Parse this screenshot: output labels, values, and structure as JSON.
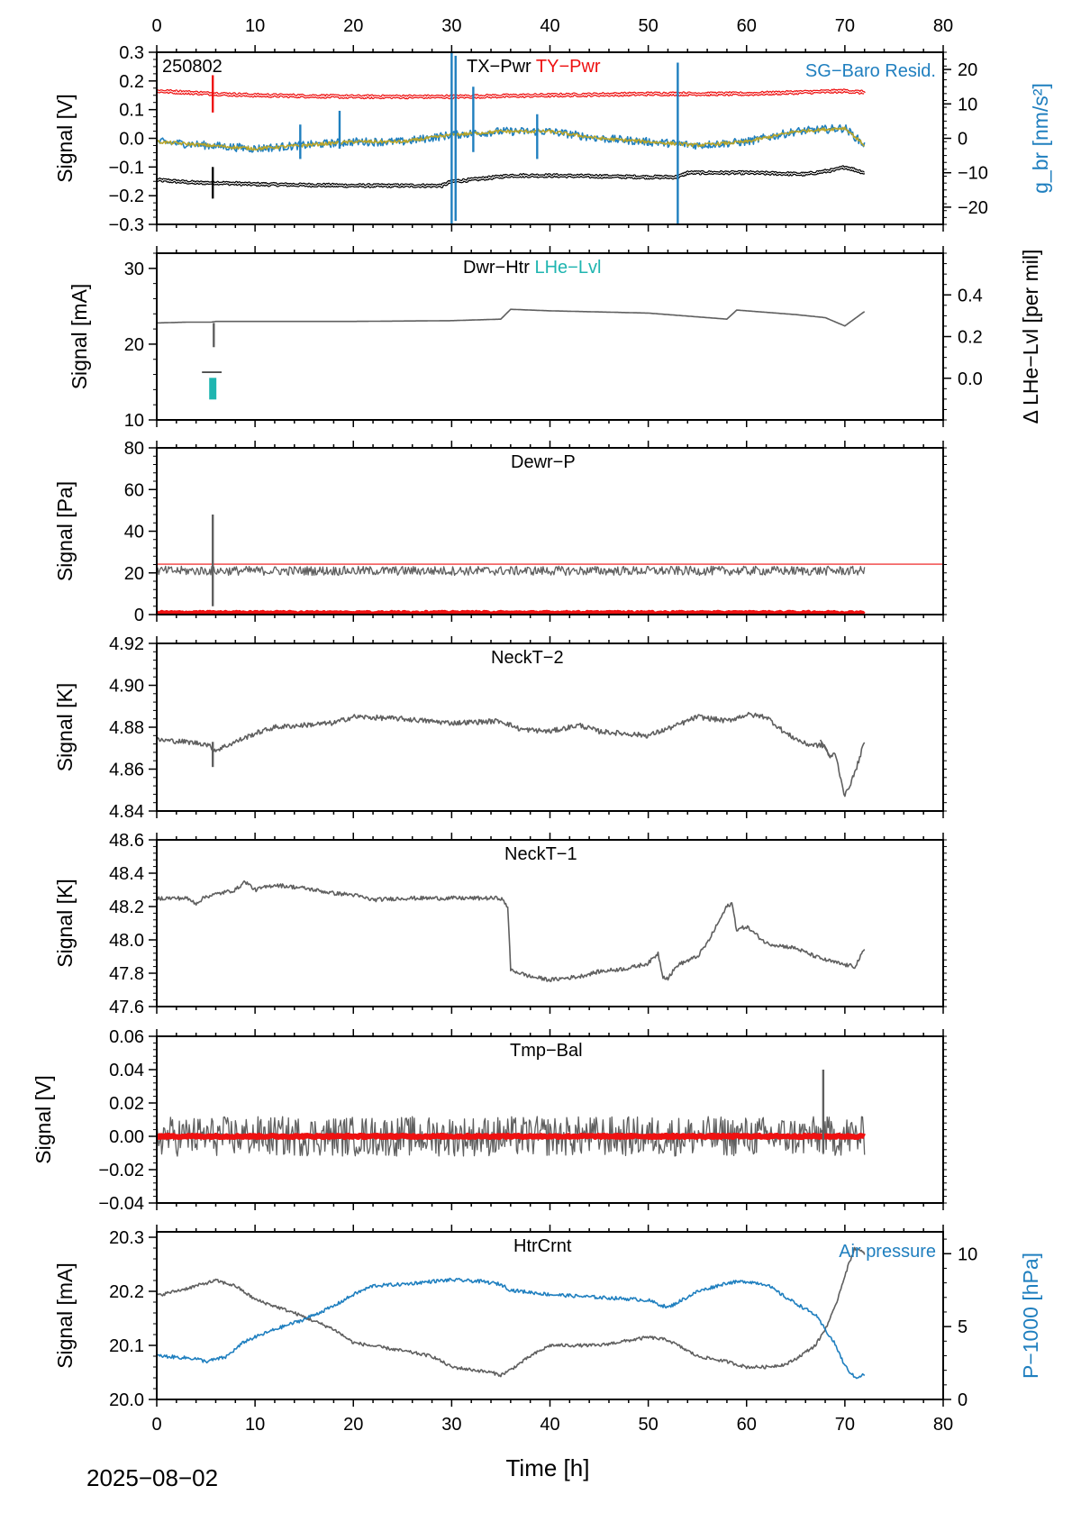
{
  "figure": {
    "date_label": "2025−08−02",
    "x_axis_title": "Time [h]",
    "x_ticks": [
      "0",
      "10",
      "20",
      "30",
      "40",
      "50",
      "60",
      "70",
      "80"
    ]
  },
  "colors": {
    "gray": "#5f5f5f",
    "red": "#ee1111",
    "blue": "#1f7fbf",
    "olive": "#b7a52a",
    "black": "#000000",
    "teal": "#1fb5b0"
  },
  "chart_data": [
    {
      "id": "tilt",
      "type": "line",
      "title": "",
      "corner_label": "250802",
      "labels": [
        {
          "text": "TX−Pwr",
          "color": "black"
        },
        {
          "text": "TY−Pwr",
          "color": "red"
        },
        {
          "text": "SG−Baro Resid.",
          "color": "blue"
        }
      ],
      "ylabel": "Signal [V]",
      "ylim": [
        -0.3,
        0.3
      ],
      "yticks": [
        "0.3",
        "0.2",
        "0.1",
        "0.0",
        "−0.1",
        "−0.2",
        "−0.3"
      ],
      "y2label": "g_br [nm/s²]",
      "y2lim": [
        -25,
        25
      ],
      "y2ticks": [
        "20",
        "10",
        "0",
        "−10",
        "−20"
      ],
      "series": [
        {
          "name": "TX−Pwr",
          "axis": "left",
          "color": "black",
          "x": [
            0,
            4,
            6,
            10,
            20,
            29,
            30,
            31,
            36,
            40,
            50,
            53,
            54,
            60,
            66,
            69,
            70,
            72
          ],
          "y": [
            -0.145,
            -0.155,
            -0.155,
            -0.16,
            -0.165,
            -0.165,
            -0.15,
            -0.148,
            -0.13,
            -0.13,
            -0.135,
            -0.135,
            -0.12,
            -0.12,
            -0.125,
            -0.11,
            -0.1,
            -0.12
          ]
        },
        {
          "name": "TY−Pwr",
          "axis": "left",
          "color": "red",
          "x": [
            0,
            6,
            10,
            20,
            30,
            40,
            50,
            60,
            70,
            72
          ],
          "y": [
            0.165,
            0.155,
            0.15,
            0.145,
            0.145,
            0.15,
            0.155,
            0.155,
            0.165,
            0.16
          ]
        },
        {
          "name": "SG−Baro Resid.",
          "axis": "right",
          "color": "blue",
          "x": [
            0,
            5,
            10,
            15,
            20,
            25,
            30,
            35,
            40,
            45,
            50,
            55,
            60,
            65,
            70,
            72
          ],
          "y": [
            -1,
            -2,
            -3,
            -2,
            -1,
            -1,
            1,
            2,
            2,
            0,
            -1,
            -2,
            -1,
            2,
            3,
            -2
          ]
        },
        {
          "name": "",
          "axis": "right",
          "color": "olive",
          "x": [
            0,
            5,
            10,
            15,
            20,
            25,
            30,
            35,
            40,
            45,
            50,
            55,
            60,
            65,
            70,
            72
          ],
          "y": [
            -1,
            -2,
            -3,
            -2,
            -1,
            -1,
            1,
            2,
            2,
            0,
            -1,
            -2,
            -1,
            2,
            3,
            -2
          ]
        }
      ],
      "spikes": [
        {
          "series": "blue",
          "x": 30.0,
          "y": [
            -25,
            25
          ]
        },
        {
          "series": "blue",
          "x": 30.4,
          "y": [
            -24,
            24
          ]
        },
        {
          "series": "blue",
          "x": 53.0,
          "y": [
            -25,
            22
          ]
        },
        {
          "series": "blue",
          "x": 14.6,
          "y": [
            -6,
            4
          ]
        },
        {
          "series": "blue",
          "x": 18.6,
          "y": [
            -3,
            8
          ]
        },
        {
          "series": "blue",
          "x": 32.2,
          "y": [
            -4,
            15
          ]
        },
        {
          "series": "blue",
          "x": 38.7,
          "y": [
            -6,
            7
          ]
        },
        {
          "series": "black",
          "x": 5.7,
          "y": [
            -0.21,
            -0.1
          ]
        },
        {
          "series": "red",
          "x": 5.7,
          "y": [
            0.09,
            0.22
          ]
        }
      ]
    },
    {
      "id": "dwr",
      "type": "line",
      "title": "",
      "labels": [
        {
          "text": "Dwr−Htr",
          "color": "black"
        },
        {
          "text": "LHe−Lvl",
          "color": "teal"
        }
      ],
      "ylabel": "Signal [mA]",
      "ylim": [
        10,
        32
      ],
      "yticks": [
        "30",
        "20",
        "10"
      ],
      "y2label": "Δ LHe−Lvl [per mil]",
      "y2lim": [
        -0.2,
        0.6
      ],
      "y2ticks": [
        "0.4",
        "0.2",
        "0.0"
      ],
      "series": [
        {
          "name": "Dwr−Htr",
          "axis": "left",
          "color": "gray",
          "x": [
            0,
            3,
            5.5,
            6,
            10,
            20,
            30,
            35,
            36,
            40,
            50,
            58,
            59,
            65,
            68,
            70,
            72
          ],
          "y": [
            22.8,
            22.9,
            22.9,
            23.0,
            23.0,
            23.0,
            23.1,
            23.3,
            24.6,
            24.4,
            24.1,
            23.3,
            24.5,
            23.9,
            23.5,
            22.4,
            24.3
          ]
        },
        {
          "name": "LHe−Lvl",
          "axis": "right",
          "color": "teal",
          "x": [
            5.7
          ],
          "y": [
            -0.05
          ]
        }
      ],
      "spikes": [
        {
          "series": "gray",
          "x": 5.8,
          "y": [
            19.6,
            22.8
          ]
        }
      ],
      "marker": {
        "x1": 4.6,
        "x2": 6.6,
        "y": 16.3
      }
    },
    {
      "id": "dewr",
      "type": "line",
      "title": "",
      "labels": [
        {
          "text": "Dewr−P",
          "color": "black"
        }
      ],
      "ylabel": "Signal [Pa]",
      "ylim": [
        0,
        80
      ],
      "yticks": [
        "80",
        "60",
        "40",
        "20",
        "0"
      ],
      "series": [
        {
          "name": "Dewr−P",
          "axis": "left",
          "color": "gray",
          "x": [
            0,
            10,
            20,
            30,
            40,
            50,
            60,
            70,
            72
          ],
          "y": [
            21,
            21,
            21,
            21,
            21,
            21,
            21,
            21,
            21
          ],
          "noise": 2.2
        },
        {
          "name": "",
          "axis": "left",
          "color": "red",
          "x": [
            0,
            72
          ],
          "y": [
            0.5,
            0.5
          ]
        }
      ],
      "hline": {
        "color": "red",
        "y": 24.2,
        "x": [
          0,
          80
        ]
      },
      "spikes": [
        {
          "series": "gray",
          "x": 5.7,
          "y": [
            4,
            48
          ]
        }
      ]
    },
    {
      "id": "neck2",
      "type": "line",
      "title": "",
      "labels": [
        {
          "text": "NeckT−2",
          "color": "black"
        }
      ],
      "ylabel": "Signal [K]",
      "ylim": [
        4.84,
        4.92
      ],
      "yticks": [
        "4.92",
        "4.90",
        "4.88",
        "4.86",
        "4.84"
      ],
      "series": [
        {
          "name": "NeckT−2",
          "axis": "left",
          "color": "gray",
          "x": [
            0,
            3,
            5,
            6,
            8,
            10,
            12,
            15,
            18,
            20,
            25,
            30,
            35,
            37,
            40,
            43,
            45,
            50,
            53,
            55,
            58,
            60,
            62,
            64,
            66,
            68,
            68.5,
            69,
            70,
            71,
            72
          ],
          "y": [
            4.874,
            4.873,
            4.872,
            4.869,
            4.873,
            4.877,
            4.88,
            4.881,
            4.882,
            4.885,
            4.884,
            4.882,
            4.883,
            4.879,
            4.878,
            4.881,
            4.878,
            4.876,
            4.881,
            4.885,
            4.883,
            4.886,
            4.885,
            4.877,
            4.872,
            4.871,
            4.865,
            4.868,
            4.847,
            4.858,
            4.873
          ],
          "noise": 0.0012
        },
        {
          "name": "",
          "axis": "left",
          "color": "gray",
          "x": [
            67.5,
            68.5
          ],
          "y": [
            4.874,
            4.866
          ]
        }
      ],
      "spikes": [
        {
          "series": "gray",
          "x": 5.7,
          "y": [
            4.861,
            4.873
          ]
        }
      ]
    },
    {
      "id": "neck1",
      "type": "line",
      "title": "",
      "labels": [
        {
          "text": "NeckT−1",
          "color": "black"
        }
      ],
      "ylabel": "Signal [K]",
      "ylim": [
        47.6,
        48.6
      ],
      "yticks": [
        "48.6",
        "48.4",
        "48.2",
        "48.0",
        "47.8",
        "47.6"
      ],
      "series": [
        {
          "name": "NeckT−1",
          "axis": "left",
          "color": "gray",
          "x": [
            0,
            3,
            4,
            5,
            8,
            9,
            10,
            12,
            15,
            18,
            20,
            22,
            25,
            30,
            35,
            35.7,
            36,
            38,
            40,
            43,
            45,
            48,
            50,
            51,
            51.5,
            52,
            53,
            55,
            56,
            58,
            58.5,
            59,
            60,
            62,
            65,
            67,
            68,
            70,
            71,
            72
          ],
          "y": [
            48.25,
            48.25,
            48.22,
            48.26,
            48.3,
            48.35,
            48.3,
            48.33,
            48.31,
            48.28,
            48.27,
            48.24,
            48.25,
            48.25,
            48.25,
            48.2,
            47.82,
            47.78,
            47.76,
            47.78,
            47.81,
            47.83,
            47.86,
            47.92,
            47.78,
            47.77,
            47.85,
            47.9,
            47.98,
            48.2,
            48.22,
            48.06,
            48.08,
            47.98,
            47.95,
            47.9,
            47.88,
            47.85,
            47.84,
            47.94
          ],
          "noise": 0.012
        }
      ]
    },
    {
      "id": "tmpbal",
      "type": "line",
      "title": "",
      "labels": [
        {
          "text": "Tmp−Bal",
          "color": "black"
        }
      ],
      "ylabel": "Signal [V]",
      "ylim": [
        -0.04,
        0.06
      ],
      "yticks": [
        "0.06",
        "0.04",
        "0.02",
        "0.00",
        "−0.02",
        "−0.04"
      ],
      "series": [
        {
          "name": "Tmp−Bal",
          "axis": "left",
          "color": "gray",
          "x": [
            0,
            72
          ],
          "y": [
            0.0,
            0.0
          ],
          "noise": 0.012
        },
        {
          "name": "",
          "axis": "left",
          "color": "red",
          "x": [
            0,
            72
          ],
          "y": [
            0.0,
            0.0
          ]
        }
      ],
      "spikes": [
        {
          "series": "gray",
          "x": 67.8,
          "y": [
            -0.01,
            0.04
          ]
        }
      ]
    },
    {
      "id": "htr",
      "type": "line",
      "title": "",
      "labels": [
        {
          "text": "HtrCrnt",
          "color": "black"
        },
        {
          "text": "Air pressure",
          "color": "blue"
        }
      ],
      "ylabel": "Signal [mA]",
      "ylim": [
        20.0,
        20.31
      ],
      "yticks": [
        "20.3",
        "20.2",
        "20.1",
        "20.0"
      ],
      "y2label": "P−1000 [hPa]",
      "y2lim": [
        0,
        11.5
      ],
      "y2ticks": [
        "10",
        "5",
        "0"
      ],
      "series": [
        {
          "name": "HtrCrnt",
          "axis": "left",
          "color": "gray",
          "x": [
            0,
            3,
            6,
            8,
            10,
            14,
            18,
            20,
            25,
            28,
            30,
            32,
            34,
            35,
            36,
            38,
            40,
            45,
            50,
            52,
            55,
            58,
            60,
            62,
            64,
            65,
            67,
            68,
            69,
            70,
            71,
            72
          ],
          "y": [
            20.192,
            20.205,
            20.22,
            20.21,
            20.185,
            20.16,
            20.13,
            20.105,
            20.09,
            20.08,
            20.06,
            20.055,
            20.05,
            20.045,
            20.055,
            20.08,
            20.1,
            20.1,
            20.115,
            20.11,
            20.08,
            20.07,
            20.06,
            20.06,
            20.065,
            20.075,
            20.1,
            20.13,
            20.17,
            20.23,
            20.28,
            20.27
          ],
          "noise": 0.003
        },
        {
          "name": "Air pressure",
          "axis": "right",
          "color": "blue",
          "x": [
            0,
            2,
            4,
            5,
            7,
            9,
            12,
            15,
            18,
            20,
            22,
            25,
            28,
            30,
            33,
            35,
            36,
            40,
            45,
            48,
            50,
            52,
            55,
            58,
            60,
            62,
            64,
            66,
            67,
            68,
            69,
            70,
            71,
            72
          ],
          "y": [
            3.0,
            2.9,
            2.8,
            2.6,
            2.9,
            4.0,
            4.8,
            5.5,
            6.4,
            7.2,
            7.8,
            7.9,
            8.1,
            8.2,
            8.1,
            7.9,
            7.5,
            7.2,
            7.0,
            6.9,
            6.8,
            6.3,
            7.4,
            8.0,
            8.1,
            7.9,
            7.0,
            6.2,
            5.8,
            4.8,
            3.8,
            2.3,
            1.5,
            1.7
          ],
          "noise": 0.12
        }
      ]
    }
  ]
}
